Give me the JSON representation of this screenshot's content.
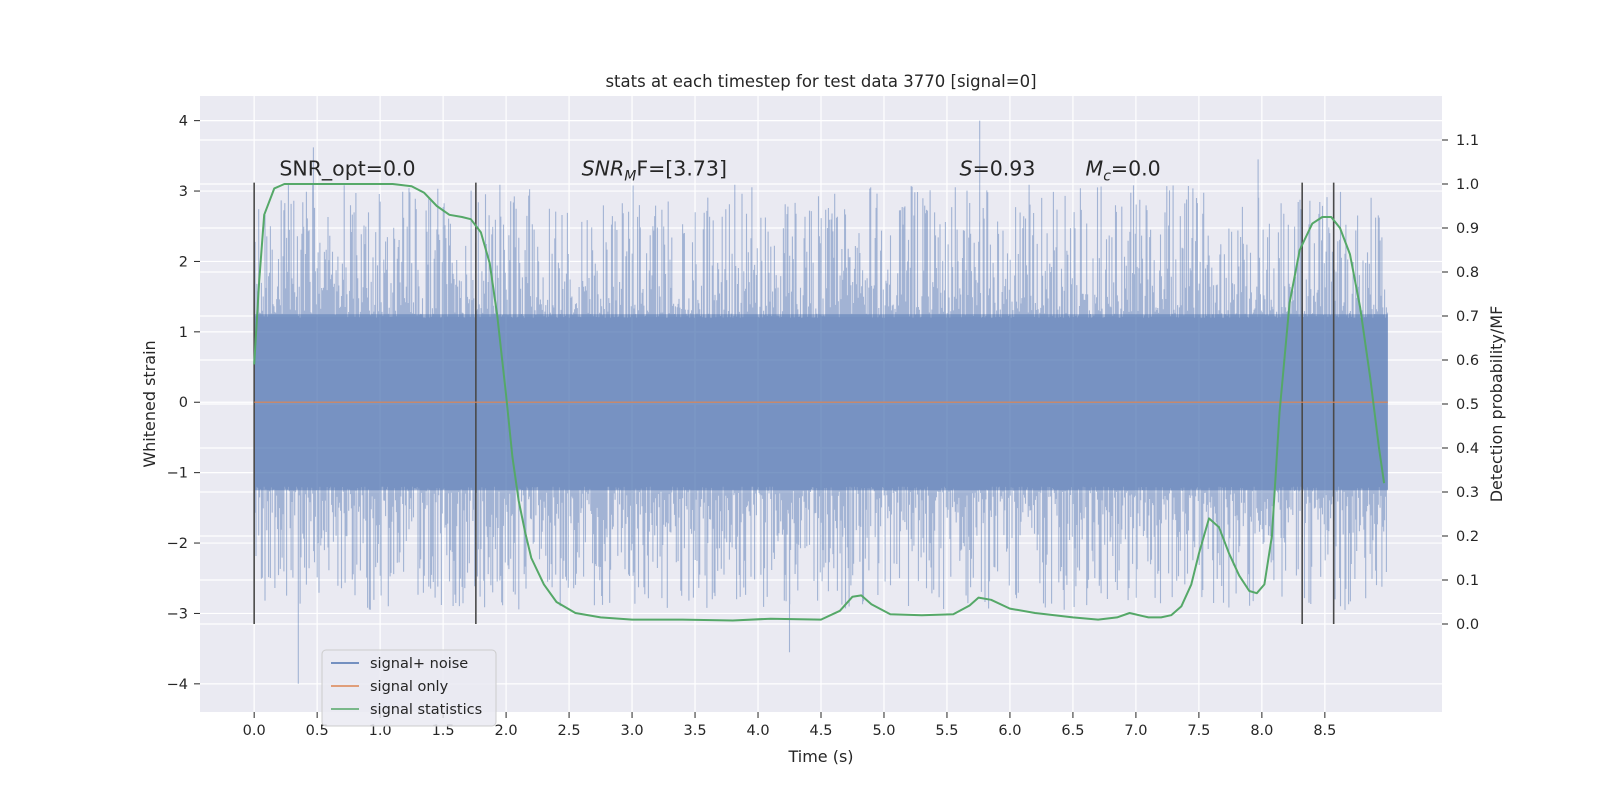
{
  "chart_data": {
    "type": "line",
    "title": "stats at each timestep for test data 3770 [signal=0]",
    "xlabel": "Time (s)",
    "ylabel_left": "Whitened strain",
    "ylabel_right": "Detection probability/MF",
    "xlim": [
      -0.43,
      9.43
    ],
    "ylim_left": [
      -4.4,
      4.35
    ],
    "ylim_right": [
      -0.2,
      1.2
    ],
    "grid": true,
    "x_ticks": [
      "0.0",
      "0.5",
      "1.0",
      "1.5",
      "2.0",
      "2.5",
      "3.0",
      "3.5",
      "4.0",
      "4.5",
      "5.0",
      "5.5",
      "6.0",
      "6.5",
      "7.0",
      "7.5",
      "8.0",
      "8.5"
    ],
    "x_tick_values": [
      0,
      0.5,
      1,
      1.5,
      2,
      2.5,
      3,
      3.5,
      4,
      4.5,
      5,
      5.5,
      6,
      6.5,
      7,
      7.5,
      8,
      8.5
    ],
    "y_left_ticks": [
      "4",
      "3",
      "2",
      "1",
      "0",
      "−1",
      "−2",
      "−3",
      "−4"
    ],
    "y_left_tick_values": [
      4,
      3,
      2,
      1,
      0,
      -1,
      -2,
      -3,
      -4
    ],
    "y_right_ticks": [
      "1.1",
      "1.0",
      "0.9",
      "0.8",
      "0.7",
      "0.6",
      "0.5",
      "0.4",
      "0.3",
      "0.2",
      "0.1",
      "0.0"
    ],
    "y_right_tick_values": [
      1.1,
      1.0,
      0.9,
      0.8,
      0.7,
      0.6,
      0.5,
      0.4,
      0.3,
      0.2,
      0.1,
      0.0
    ],
    "annotations": [
      {
        "text": "SNR_opt=0.0",
        "x": 0.2,
        "y": 3.22
      },
      {
        "text": "SNR",
        "sub": "M",
        "suffix": "F=[3.73]",
        "italic": true,
        "x": 2.6,
        "y": 3.22
      },
      {
        "text": "S",
        "suffix": "=0.93",
        "italic": true,
        "x": 5.6,
        "y": 3.22
      },
      {
        "text": "M",
        "sub": "c",
        "suffix": "=0.0",
        "italic": true,
        "x": 6.6,
        "y": 3.22
      }
    ],
    "vertical_lines": [
      0.0,
      1.76,
      8.32,
      8.57
    ],
    "vline_range": [
      -3.15,
      3.12
    ],
    "series": [
      {
        "name": "signal+ noise",
        "color": "#4c72b0",
        "kind": "noise",
        "x_range": [
          0.0,
          9.0
        ],
        "core_band": [
          -1.25,
          1.25
        ],
        "spike_extremes": [
          {
            "x": 0.35,
            "y": -4.0
          },
          {
            "x": 5.76,
            "y": 4.0
          },
          {
            "x": 0.47,
            "y": 3.62
          },
          {
            "x": 4.25,
            "y": -3.55
          },
          {
            "x": 7.97,
            "y": 3.45
          }
        ]
      },
      {
        "name": "signal only",
        "color": "#dd8452",
        "kind": "line",
        "x": [
          0.0,
          9.0
        ],
        "y": [
          0.0,
          0.0
        ]
      },
      {
        "name": "signal statistics",
        "color": "#55a868",
        "axis": "right",
        "kind": "line",
        "x": [
          0.0,
          0.04,
          0.08,
          0.16,
          0.24,
          0.35,
          0.5,
          0.8,
          1.1,
          1.25,
          1.35,
          1.45,
          1.55,
          1.65,
          1.72,
          1.8,
          1.87,
          1.93,
          2.0,
          2.05,
          2.1,
          2.15,
          2.2,
          2.3,
          2.4,
          2.55,
          2.75,
          3.0,
          3.4,
          3.8,
          4.1,
          4.5,
          4.65,
          4.75,
          4.82,
          4.9,
          5.05,
          5.3,
          5.55,
          5.68,
          5.75,
          5.85,
          6.0,
          6.2,
          6.5,
          6.7,
          6.85,
          6.95,
          7.1,
          7.2,
          7.28,
          7.36,
          7.44,
          7.5,
          7.58,
          7.66,
          7.74,
          7.82,
          7.9,
          7.96,
          8.02,
          8.08,
          8.14,
          8.22,
          8.3,
          8.4,
          8.48,
          8.55,
          8.62,
          8.7,
          8.78,
          8.86,
          8.93,
          8.97
        ],
        "y": [
          0.59,
          0.78,
          0.93,
          0.99,
          1.0,
          1.0,
          1.0,
          1.0,
          1.0,
          0.995,
          0.98,
          0.95,
          0.93,
          0.925,
          0.92,
          0.89,
          0.82,
          0.7,
          0.52,
          0.38,
          0.28,
          0.21,
          0.15,
          0.09,
          0.05,
          0.025,
          0.015,
          0.01,
          0.01,
          0.008,
          0.012,
          0.01,
          0.03,
          0.062,
          0.065,
          0.045,
          0.022,
          0.02,
          0.022,
          0.042,
          0.06,
          0.055,
          0.035,
          0.025,
          0.015,
          0.01,
          0.015,
          0.025,
          0.015,
          0.015,
          0.02,
          0.04,
          0.09,
          0.16,
          0.24,
          0.22,
          0.16,
          0.11,
          0.075,
          0.07,
          0.09,
          0.2,
          0.48,
          0.73,
          0.85,
          0.91,
          0.925,
          0.925,
          0.9,
          0.84,
          0.72,
          0.56,
          0.4,
          0.32
        ]
      }
    ],
    "legend": {
      "position": "lower-left",
      "entries": [
        {
          "label": "signal+ noise",
          "color": "#4c72b0"
        },
        {
          "label": "signal only",
          "color": "#dd8452"
        },
        {
          "label": "signal statistics",
          "color": "#55a868"
        }
      ]
    }
  }
}
